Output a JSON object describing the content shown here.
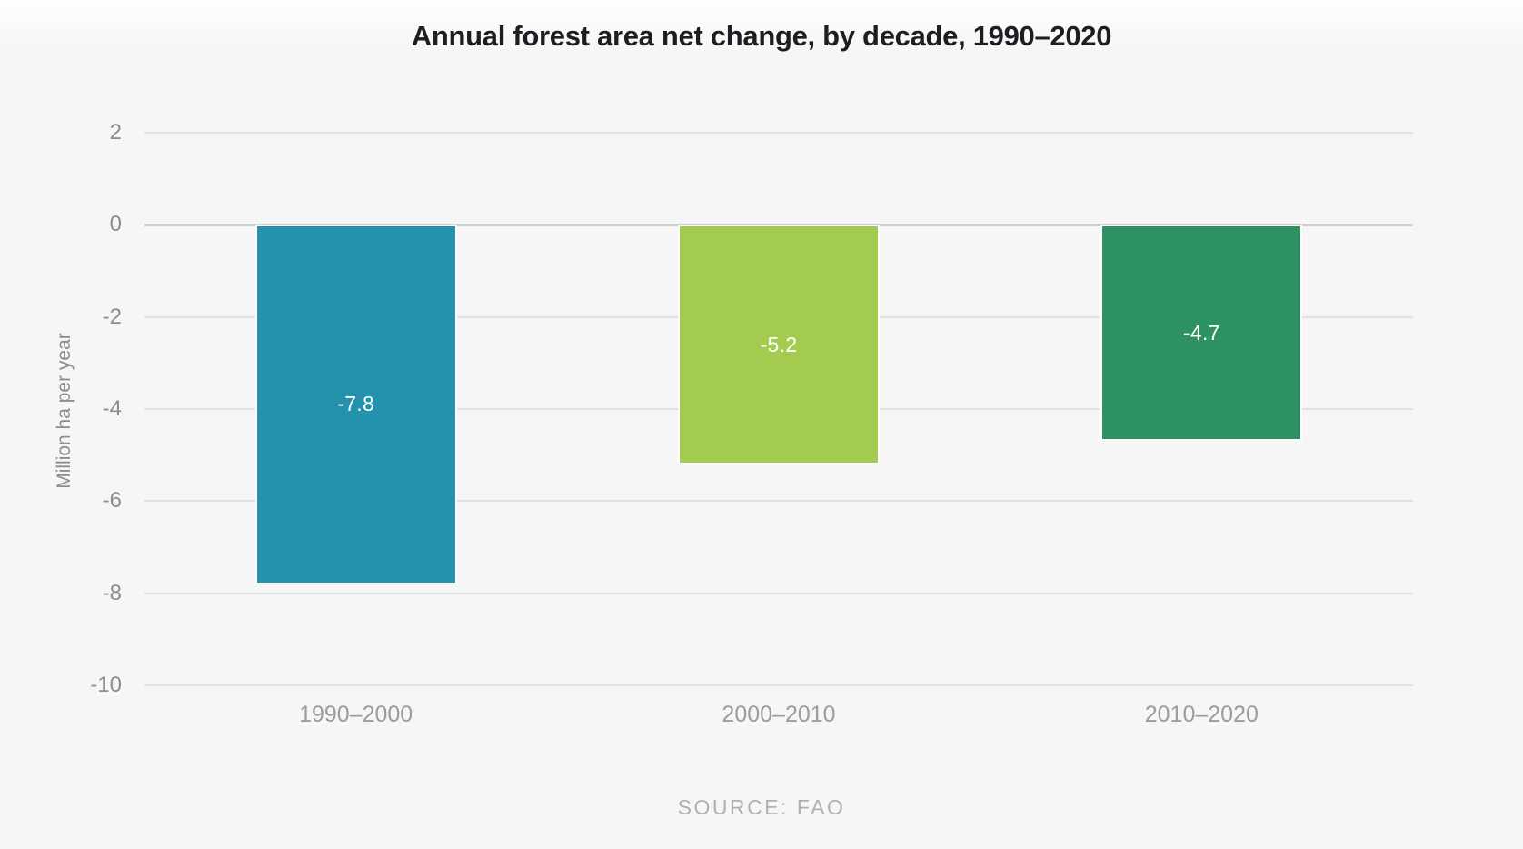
{
  "chart_data": {
    "type": "bar",
    "title": "Annual forest area net change, by decade, 1990–2020",
    "categories": [
      "1990–2000",
      "2000–2010",
      "2010–2020"
    ],
    "values": [
      -7.8,
      -5.2,
      -4.7
    ],
    "bar_labels": [
      "-7.8",
      "-5.2",
      "-4.7"
    ],
    "bar_colors": [
      "#2492ad",
      "#a3cb50",
      "#2e9161"
    ],
    "xlabel": "",
    "ylabel": "Million ha per year",
    "ylim": [
      -10,
      2
    ],
    "yticks": [
      2,
      0,
      -2,
      -4,
      -6,
      -8,
      -10
    ],
    "grid": true,
    "legend": false,
    "source": "SOURCE: FAO",
    "background_color": "#f6f6f6",
    "gridline_color": "#e1e1e1",
    "zero_line_color": "#cfcfcf",
    "label_text_color": "#ffffff"
  }
}
